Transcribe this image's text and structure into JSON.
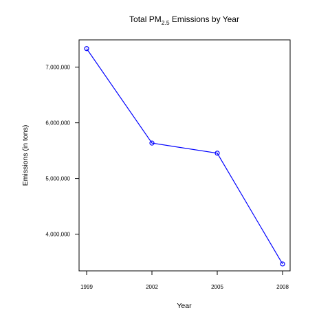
{
  "chart_data": {
    "type": "line",
    "title": {
      "main": "Total PM",
      "subscript": "2.5",
      "rest": " Emissions by Year"
    },
    "xlabel": "Year",
    "ylabel": "Emissions (in tons)",
    "x_tick_labels": [
      "1999",
      "2002",
      "2005",
      "2008"
    ],
    "y_tick_labels": [
      "4,000,000",
      "5,000,000",
      "6,000,000",
      "7,000,000"
    ],
    "y_tick_values": [
      4000000,
      5000000,
      6000000,
      7000000
    ],
    "ylim": [
      3340000,
      7490000
    ],
    "grid": false,
    "series": [
      {
        "x": [
          "1999",
          "2002",
          "2005",
          "2008"
        ],
        "values": [
          7332967,
          5635780,
          5454703,
          3464206
        ],
        "color": "#0000ff",
        "marker": "open-circle"
      }
    ]
  }
}
